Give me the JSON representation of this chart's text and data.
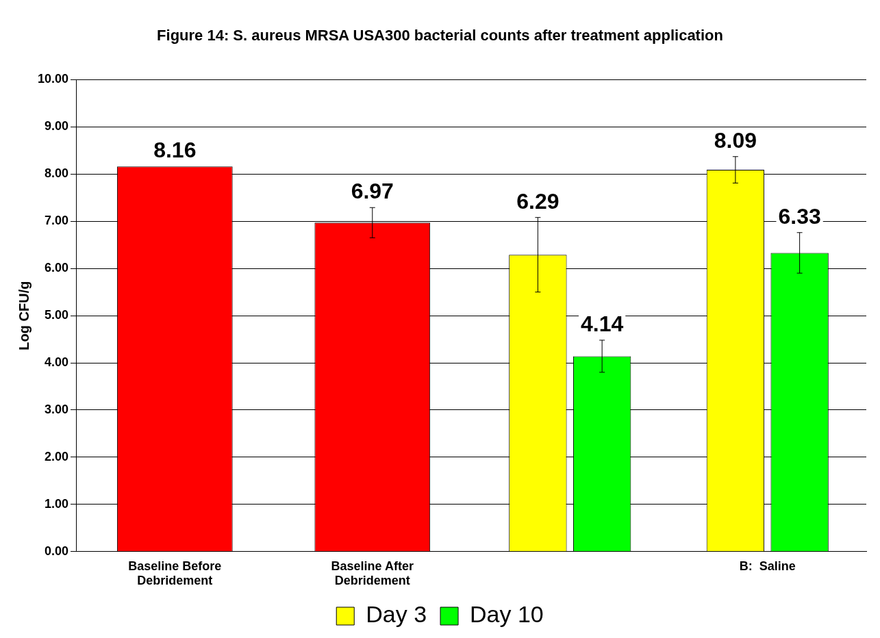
{
  "chart_data": {
    "type": "bar",
    "title": "Figure 14: S. aureus MRSA USA300 bacterial counts after treatment application",
    "ylabel": "Log CFU/g",
    "categories": [
      [
        "Baseline Before",
        "Debridement"
      ],
      [
        "Baseline After",
        "Debridement"
      ],
      null,
      "B:  Saline"
    ],
    "series": [
      {
        "color": "#ff0000",
        "values": [
          8.16,
          6.97,
          null,
          null
        ],
        "errors": [
          null,
          0.32,
          null,
          null
        ]
      },
      {
        "name": "Day 3",
        "color": "#ffff00",
        "values": [
          null,
          null,
          6.29,
          8.09
        ],
        "errors": [
          null,
          null,
          0.79,
          0.28
        ]
      },
      {
        "name": "Day 10",
        "color": "#00ff00",
        "values": [
          null,
          null,
          4.14,
          6.33
        ],
        "errors": [
          null,
          null,
          0.34,
          0.43
        ]
      }
    ],
    "ylim": [
      0,
      10
    ],
    "yticks": [
      {
        "value": 0,
        "label": "0.00"
      },
      {
        "value": 1,
        "label": "1.00"
      },
      {
        "value": 2,
        "label": "2.00"
      },
      {
        "value": 3,
        "label": "3.00"
      },
      {
        "value": 4,
        "label": "4.00"
      },
      {
        "value": 5,
        "label": "5.00"
      },
      {
        "value": 6,
        "label": "6.00"
      },
      {
        "value": 7,
        "label": "7.00"
      },
      {
        "value": 8,
        "label": "8.00"
      },
      {
        "value": 9,
        "label": "9.00"
      },
      {
        "value": 10,
        "label": "10.00"
      }
    ],
    "grid": "y",
    "legend": "bottom",
    "data_labels": true
  }
}
